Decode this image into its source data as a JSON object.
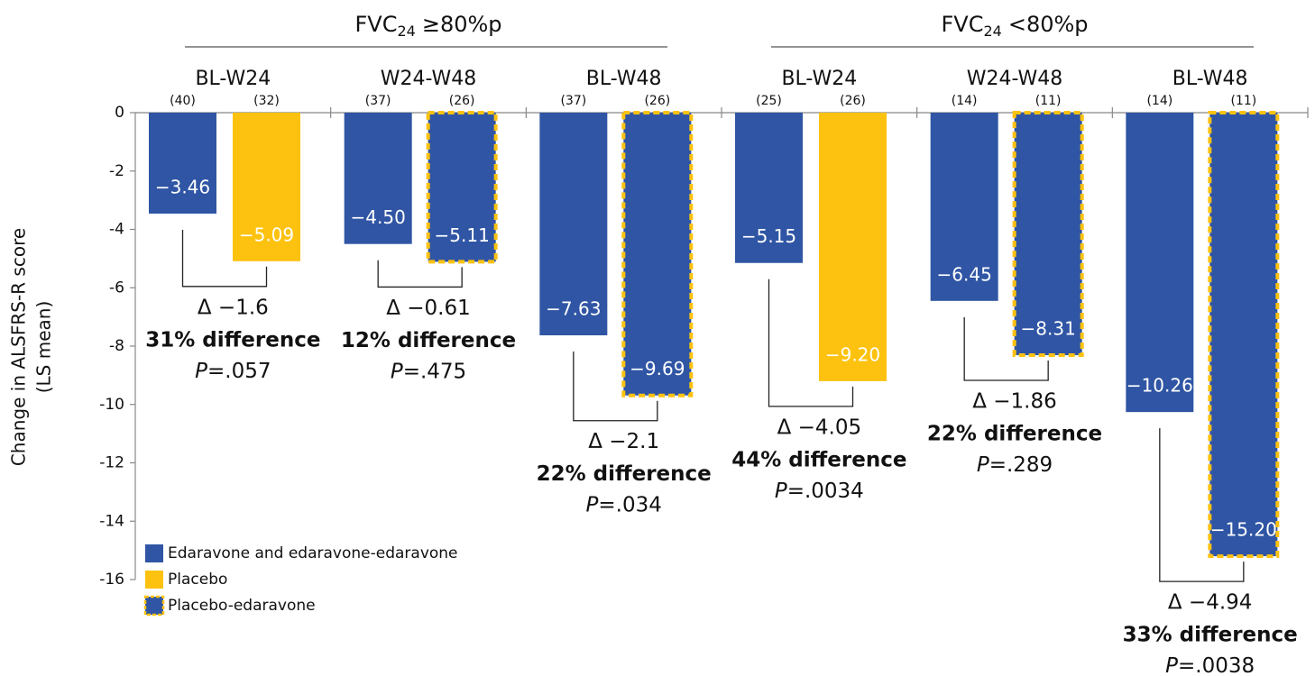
{
  "chart_data": {
    "type": "bar",
    "ylabel": [
      "Change in ALSFRS-R score",
      "(LS mean)"
    ],
    "supergroups": [
      {
        "name": "FVC",
        "sub": "24",
        "rest": "≥80%p"
      },
      {
        "name": "FVC",
        "sub": "24",
        "rest": "<80%p"
      }
    ],
    "categories": [
      "BL-W24",
      "W24-W48",
      "BL-W48",
      "BL-W24",
      "W24-W48",
      "BL-W48"
    ],
    "series": [
      {
        "name": "Edaravone and edaravone-edaravone",
        "color": "#2f55a4",
        "values": [
          -3.46,
          -4.5,
          -7.63,
          -5.15,
          -6.45,
          -10.26
        ],
        "value_labels": [
          "−3.46",
          "−4.50",
          "−7.63",
          "−5.15",
          "−6.45",
          "−10.26"
        ],
        "n": [
          "(40)",
          "(37)",
          "(37)",
          "(25)",
          "(14)",
          "(14)"
        ]
      },
      {
        "name": "Placebo",
        "color": "#fdc20f",
        "values": [
          -5.09,
          null,
          null,
          -9.2,
          null,
          null
        ],
        "value_labels": [
          "−5.09",
          null,
          null,
          "−9.20",
          null,
          null
        ],
        "n": [
          "(32)",
          null,
          null,
          "(26)",
          null,
          null
        ]
      },
      {
        "name": "Placebo-edaravone",
        "color": "#2f55a4",
        "border_color": "#fdc20f",
        "values": [
          null,
          -5.11,
          -9.69,
          null,
          -8.31,
          -15.2
        ],
        "value_labels": [
          null,
          "−5.11",
          "−9.69",
          null,
          "−8.31",
          "−15.20"
        ],
        "n": [
          null,
          "(26)",
          "(26)",
          null,
          "(11)",
          "(11)"
        ]
      }
    ],
    "p_symbol": "P",
    "annotations": [
      {
        "delta": "Δ −1.6",
        "difference": "31% difference",
        "p": "=.057"
      },
      {
        "delta": "Δ −0.61",
        "difference": "12% difference",
        "p": "=.475"
      },
      {
        "delta": "Δ −2.1",
        "difference": "22% difference",
        "p": "=.034"
      },
      {
        "delta": "Δ −4.05",
        "difference": "44% difference",
        "p": "=.0034"
      },
      {
        "delta": "Δ −1.86",
        "difference": "22% difference",
        "p": "=.289"
      },
      {
        "delta": "Δ −4.94",
        "difference": "33% difference",
        "p": "=.0038"
      }
    ],
    "ylim": [
      -16,
      0
    ],
    "yticks": [
      0,
      -2,
      -4,
      -6,
      -8,
      -10,
      -12,
      -14,
      -16
    ],
    "legend": "lower left"
  }
}
